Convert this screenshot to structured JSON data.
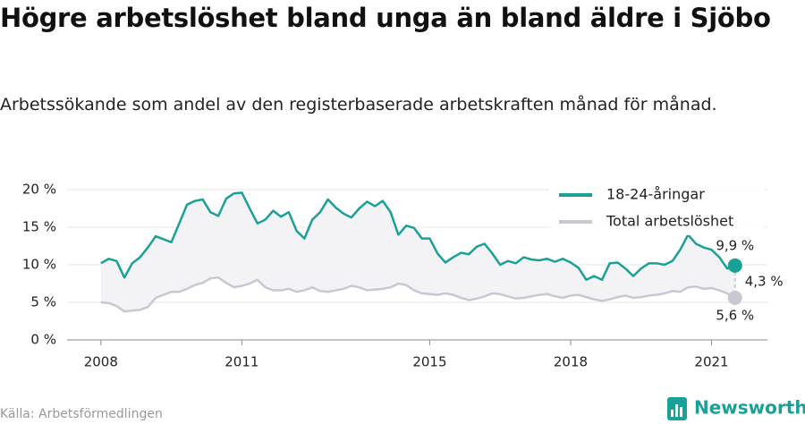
{
  "chart_data": {
    "type": "line",
    "title": "Högre arbetslöshet bland unga än bland äldre i Sjöbo",
    "subtitle": "Arbetssökande som andel av den registerbaserade arbetskraften månad för månad.",
    "x": [
      2008,
      2008.167,
      2008.333,
      2008.5,
      2008.667,
      2008.833,
      2009,
      2009.167,
      2009.333,
      2009.5,
      2009.667,
      2009.833,
      2010,
      2010.167,
      2010.333,
      2010.5,
      2010.667,
      2010.833,
      2011,
      2011.167,
      2011.333,
      2011.5,
      2011.667,
      2011.833,
      2012,
      2012.167,
      2012.333,
      2012.5,
      2012.667,
      2012.833,
      2013,
      2013.167,
      2013.333,
      2013.5,
      2013.667,
      2013.833,
      2014,
      2014.167,
      2014.333,
      2014.5,
      2014.667,
      2014.833,
      2015,
      2015.167,
      2015.333,
      2015.5,
      2015.667,
      2015.833,
      2016,
      2016.167,
      2016.333,
      2016.5,
      2016.667,
      2016.833,
      2017,
      2017.167,
      2017.333,
      2017.5,
      2017.667,
      2017.833,
      2018,
      2018.167,
      2018.333,
      2018.5,
      2018.667,
      2018.833,
      2019,
      2019.167,
      2019.333,
      2019.5,
      2019.667,
      2019.833,
      2020,
      2020.167,
      2020.333,
      2020.5,
      2020.667,
      2020.833,
      2021,
      2021.167,
      2021.333,
      2021.5
    ],
    "series": [
      {
        "name": "18-24-åringar",
        "color": "#1aa197",
        "values": [
          10.2,
          10.8,
          10.5,
          8.3,
          10.2,
          11.0,
          12.3,
          13.8,
          13.4,
          13.0,
          15.5,
          18.0,
          18.5,
          18.7,
          17.0,
          16.5,
          18.8,
          19.5,
          19.6,
          17.5,
          15.5,
          16.0,
          17.2,
          16.4,
          17.0,
          14.5,
          13.5,
          16.0,
          17.0,
          18.7,
          17.6,
          16.8,
          16.3,
          17.5,
          18.4,
          17.8,
          18.5,
          17.0,
          14.0,
          15.2,
          14.9,
          13.5,
          13.5,
          11.5,
          10.3,
          11.0,
          11.6,
          11.4,
          12.4,
          12.8,
          11.5,
          10.0,
          10.5,
          10.2,
          11.0,
          10.7,
          10.6,
          10.8,
          10.4,
          10.8,
          10.3,
          9.6,
          8.0,
          8.5,
          8.0,
          10.2,
          10.3,
          9.5,
          8.5,
          9.5,
          10.2,
          10.2,
          10.0,
          10.5,
          12.0,
          14.0,
          12.8,
          12.3,
          12.0,
          11.0,
          9.5,
          9.9
        ]
      },
      {
        "name": "Total arbetslöshet",
        "color": "#c8c8d4",
        "values": [
          5.0,
          4.9,
          4.5,
          3.8,
          3.9,
          4.0,
          4.4,
          5.6,
          6.0,
          6.4,
          6.4,
          6.8,
          7.3,
          7.6,
          8.2,
          8.3,
          7.6,
          7.0,
          7.2,
          7.5,
          8.0,
          7.0,
          6.6,
          6.6,
          6.8,
          6.4,
          6.6,
          7.0,
          6.5,
          6.4,
          6.6,
          6.8,
          7.2,
          7.0,
          6.6,
          6.7,
          6.8,
          7.0,
          7.5,
          7.3,
          6.6,
          6.2,
          6.1,
          6.0,
          6.2,
          6.0,
          5.6,
          5.3,
          5.5,
          5.8,
          6.2,
          6.1,
          5.8,
          5.5,
          5.6,
          5.8,
          6.0,
          6.1,
          5.8,
          5.6,
          5.9,
          6.0,
          5.7,
          5.4,
          5.2,
          5.4,
          5.7,
          5.9,
          5.6,
          5.7,
          5.9,
          6.0,
          6.2,
          6.5,
          6.4,
          7.0,
          7.1,
          6.8,
          6.9,
          6.6,
          6.2,
          5.6
        ]
      }
    ],
    "end_labels": [
      "9,9 %",
      "5,6 %"
    ],
    "difference_label": "4,3 %",
    "xlim": [
      2007.28,
      2022.19
    ],
    "xticks": [
      2008,
      2011,
      2015,
      2018,
      2021
    ],
    "ylim": [
      0,
      21
    ],
    "yticks": [
      {
        "value": 0,
        "label": "0 %"
      },
      {
        "value": 5,
        "label": "5 %"
      },
      {
        "value": 10,
        "label": "10 %"
      },
      {
        "value": 15,
        "label": "15 %"
      },
      {
        "value": 20,
        "label": "20 %"
      }
    ],
    "grid": true,
    "legend": "top-right",
    "source": "Källa: Arbetsförmedlingen",
    "brand": "Newsworthy"
  }
}
